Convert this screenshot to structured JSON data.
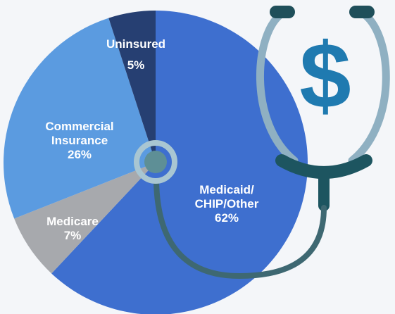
{
  "chart_data": {
    "type": "pie",
    "categories": [
      "Medicaid/ CHIP/Other",
      "Medicare",
      "Commercial Insurance",
      "Uninsured"
    ],
    "values": [
      62,
      7,
      26,
      5
    ],
    "value_labels": [
      "62%",
      "7%",
      "26%",
      "5%"
    ],
    "colors": [
      "#3e6fcf",
      "#a7a9ad",
      "#5b9be0",
      "#263f72"
    ]
  },
  "decoration": {
    "symbol": "$"
  }
}
